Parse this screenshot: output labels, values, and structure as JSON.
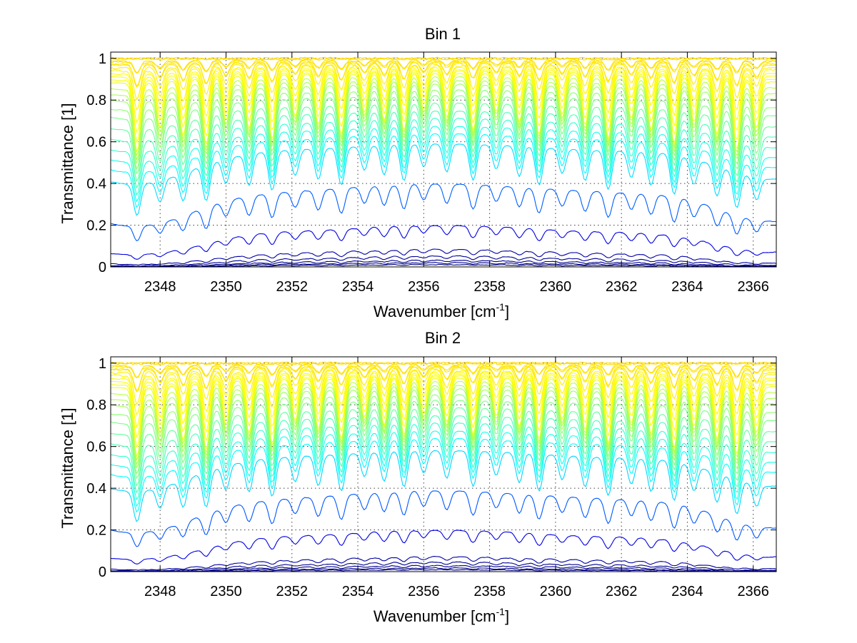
{
  "chart_data": [
    {
      "type": "line",
      "title": "Bin 1",
      "xlabel": "Wavenumber [cm",
      "xlabel_sup": "-1",
      "xlabel_close": "]",
      "ylabel": "Transmittance [1]",
      "xlim": [
        2346.5,
        2366.7
      ],
      "ylim": [
        0,
        1.03
      ],
      "xticks": [
        2348,
        2350,
        2352,
        2354,
        2356,
        2358,
        2360,
        2362,
        2364,
        2366
      ],
      "yticks": [
        0,
        0.2,
        0.4,
        0.6,
        0.8,
        1
      ],
      "ytick_labels": [
        "0",
        "0.2",
        "0.4",
        "0.6",
        "0.8",
        "1"
      ],
      "grid": true,
      "colormap": "jet",
      "absorption_line_centers": [
        2347.3,
        2348.0,
        2348.7,
        2349.4,
        2350.0,
        2350.7,
        2351.4,
        2352.1,
        2352.8,
        2353.5,
        2354.2,
        2354.8,
        2355.4,
        2356.0,
        2356.7,
        2357.5,
        2358.2,
        2358.9,
        2359.5,
        2360.2,
        2360.9,
        2361.6,
        2362.3,
        2362.9,
        2363.6,
        2364.2,
        2364.9,
        2365.5,
        2366.1
      ],
      "series_top_values_at_2358": [
        1.0,
        1.0,
        0.99,
        0.99,
        0.98,
        0.98,
        0.97,
        0.96,
        0.95,
        0.94,
        0.93,
        0.92,
        0.9,
        0.88,
        0.86,
        0.83,
        0.8,
        0.76,
        0.72,
        0.68,
        0.64,
        0.6,
        0.55,
        0.35,
        0.16,
        0.06,
        0.035,
        0.02,
        0.012,
        0.006
      ]
    },
    {
      "type": "line",
      "title": "Bin 2",
      "xlabel": "Wavenumber [cm",
      "xlabel_sup": "-1",
      "xlabel_close": "]",
      "ylabel": "Transmittance [1]",
      "xlim": [
        2346.5,
        2366.7
      ],
      "ylim": [
        0,
        1.03
      ],
      "xticks": [
        2348,
        2350,
        2352,
        2354,
        2356,
        2358,
        2360,
        2362,
        2364,
        2366
      ],
      "yticks": [
        0,
        0.2,
        0.4,
        0.6,
        0.8,
        1
      ],
      "ytick_labels": [
        "0",
        "0.2",
        "0.4",
        "0.6",
        "0.8",
        "1"
      ],
      "grid": true,
      "colormap": "jet",
      "absorption_line_centers": [
        2347.3,
        2348.0,
        2348.7,
        2349.4,
        2350.0,
        2350.7,
        2351.4,
        2352.1,
        2352.8,
        2353.5,
        2354.2,
        2354.8,
        2355.4,
        2356.0,
        2356.7,
        2357.5,
        2358.2,
        2358.9,
        2359.5,
        2360.2,
        2360.9,
        2361.6,
        2362.3,
        2362.9,
        2363.6,
        2364.2,
        2364.9,
        2365.5,
        2366.1
      ],
      "series_top_values_at_2358": [
        1.0,
        1.0,
        0.99,
        0.99,
        0.98,
        0.98,
        0.97,
        0.96,
        0.95,
        0.94,
        0.93,
        0.92,
        0.9,
        0.88,
        0.86,
        0.83,
        0.8,
        0.76,
        0.72,
        0.68,
        0.64,
        0.6,
        0.54,
        0.34,
        0.16,
        0.05,
        0.03,
        0.018,
        0.01,
        0.005
      ]
    }
  ]
}
